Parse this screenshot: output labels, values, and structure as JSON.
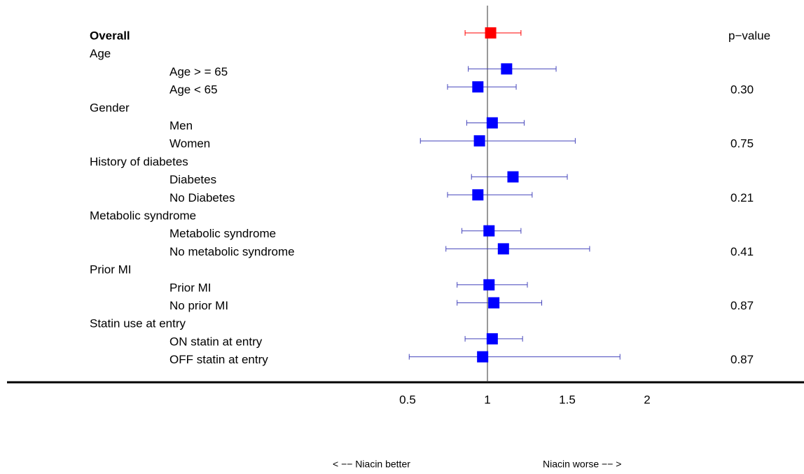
{
  "chart_data": {
    "type": "forest",
    "xlim": [
      -2,
      3
    ],
    "xticks": [
      0.5,
      1,
      1.5,
      2
    ],
    "reference": 1,
    "p_header": "p−value",
    "left_label": "< −− Niacin better",
    "right_label": "Niacin worse −− >",
    "overall": {
      "label": "Overall",
      "estimate": 1.02,
      "lower": 0.86,
      "upper": 1.21,
      "color": "#ff0000"
    },
    "color": "#0000ff",
    "ci_color": "#4444bb",
    "groups": [
      {
        "label": "Age",
        "p_value": "0.30",
        "rows": [
          {
            "label": "Age > =  65",
            "estimate": 1.12,
            "lower": 0.88,
            "upper": 1.43
          },
          {
            "label": "Age <  65",
            "estimate": 0.94,
            "lower": 0.75,
            "upper": 1.18
          }
        ]
      },
      {
        "label": "Gender",
        "p_value": "0.75",
        "rows": [
          {
            "label": "Men",
            "estimate": 1.03,
            "lower": 0.87,
            "upper": 1.23
          },
          {
            "label": "Women",
            "estimate": 0.95,
            "lower": 0.58,
            "upper": 1.55
          }
        ]
      },
      {
        "label": "History of diabetes",
        "p_value": "0.21",
        "rows": [
          {
            "label": "Diabetes",
            "estimate": 1.16,
            "lower": 0.9,
            "upper": 1.5
          },
          {
            "label": "No Diabetes",
            "estimate": 0.94,
            "lower": 0.75,
            "upper": 1.28
          }
        ]
      },
      {
        "label": "Metabolic syndrome",
        "p_value": "0.41",
        "rows": [
          {
            "label": "Metabolic syndrome",
            "estimate": 1.01,
            "lower": 0.84,
            "upper": 1.21
          },
          {
            "label": "No metabolic syndrome",
            "estimate": 1.1,
            "lower": 0.74,
            "upper": 1.64
          }
        ]
      },
      {
        "label": "Prior MI",
        "p_value": "0.87",
        "rows": [
          {
            "label": "Prior MI",
            "estimate": 1.01,
            "lower": 0.81,
            "upper": 1.25
          },
          {
            "label": "No prior MI",
            "estimate": 1.04,
            "lower": 0.81,
            "upper": 1.34
          }
        ]
      },
      {
        "label": "Statin use at entry",
        "p_value": "0.87",
        "rows": [
          {
            "label": "ON statin at entry",
            "estimate": 1.03,
            "lower": 0.86,
            "upper": 1.22
          },
          {
            "label": "OFF statin at entry",
            "estimate": 0.97,
            "lower": 0.51,
            "upper": 1.83
          }
        ]
      }
    ]
  }
}
